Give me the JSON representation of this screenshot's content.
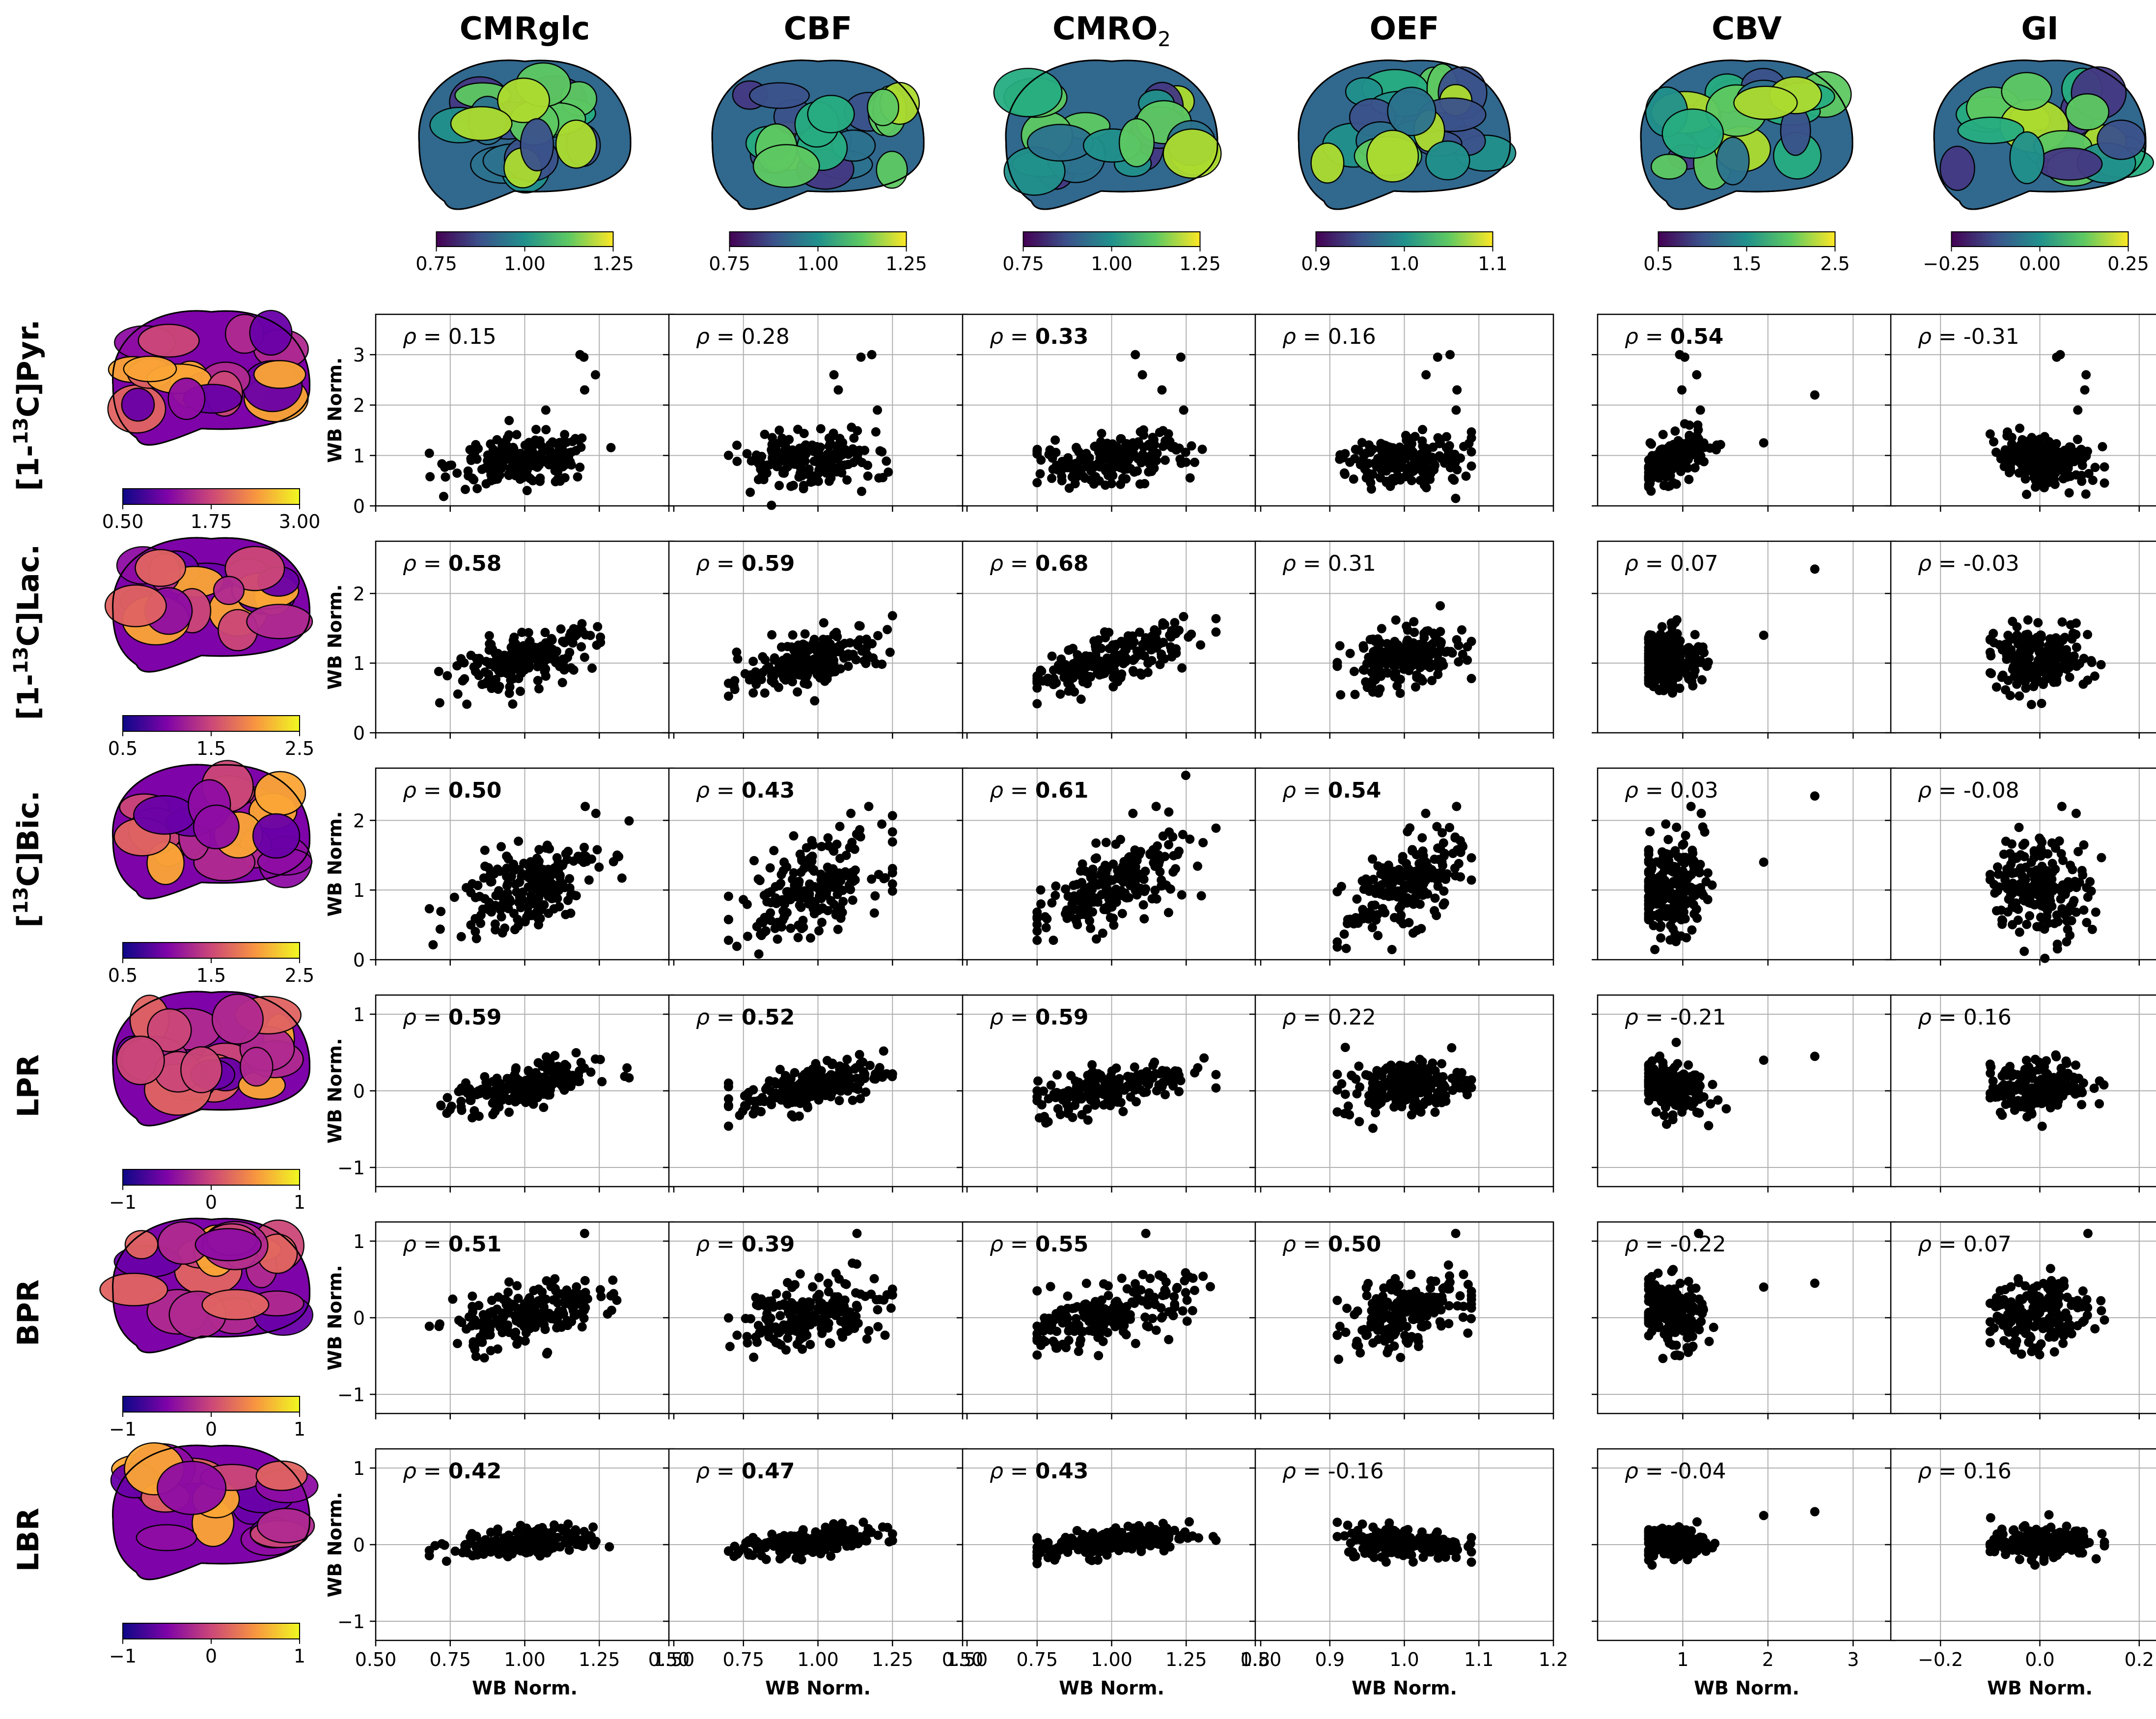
{
  "figure": {
    "x_axis_label": "WB Norm.",
    "y_axis_label": "WB Norm."
  },
  "columns": [
    {
      "key": "cmrglc",
      "label": "CMRglc",
      "sub": "",
      "cmap": "viridis",
      "colorbar": {
        "ticks": [
          "0.75",
          "1.00",
          "1.25"
        ]
      },
      "xlim": [
        0.5,
        1.5
      ],
      "xticks": [
        "0.50",
        "0.75",
        "1.00",
        "1.25",
        "1.50"
      ],
      "xtick_values": [
        0.5,
        0.75,
        1.0,
        1.25,
        1.5
      ]
    },
    {
      "key": "cbf",
      "label": "CBF",
      "sub": "",
      "cmap": "viridis",
      "colorbar": {
        "ticks": [
          "0.75",
          "1.00",
          "1.25"
        ]
      },
      "xlim": [
        0.5,
        1.5
      ],
      "xticks": [
        "0.50",
        "0.75",
        "1.00",
        "1.25",
        "1.50"
      ],
      "xtick_values": [
        0.5,
        0.75,
        1.0,
        1.25,
        1.5
      ]
    },
    {
      "key": "cmro2",
      "label": "CMRO",
      "sub": "2",
      "cmap": "viridis",
      "colorbar": {
        "ticks": [
          "0.75",
          "1.00",
          "1.25"
        ]
      },
      "xlim": [
        0.5,
        1.5
      ],
      "xticks": [
        "0.50",
        "0.75",
        "1.00",
        "1.25",
        "1.50"
      ],
      "xtick_values": [
        0.5,
        0.75,
        1.0,
        1.25,
        1.5
      ]
    },
    {
      "key": "oef",
      "label": "OEF",
      "sub": "",
      "cmap": "viridis",
      "colorbar": {
        "ticks": [
          "0.9",
          "1.0",
          "1.1"
        ]
      },
      "xlim": [
        0.8,
        1.2
      ],
      "xticks": [
        "0.8",
        "0.9",
        "1.0",
        "1.1",
        "1.2"
      ],
      "xtick_values": [
        0.8,
        0.9,
        1.0,
        1.1,
        1.2
      ]
    },
    {
      "key": "cbv",
      "label": "CBV",
      "sub": "",
      "cmap": "viridis",
      "colorbar": {
        "ticks": [
          "0.5",
          "1.5",
          "2.5"
        ]
      },
      "xlim": [
        0,
        3.5
      ],
      "xticks": [
        "1",
        "2",
        "3"
      ],
      "xtick_values": [
        1,
        2,
        3
      ]
    },
    {
      "key": "gi",
      "label": "GI",
      "sub": "",
      "cmap": "viridis",
      "colorbar": {
        "ticks": [
          "−0.25",
          "0.00",
          "0.25"
        ]
      },
      "xlim": [
        -0.3,
        0.3
      ],
      "xticks": [
        "−0.2",
        "0.0",
        "0.2"
      ],
      "xtick_values": [
        -0.2,
        0.0,
        0.2
      ]
    }
  ],
  "rows": [
    {
      "key": "pyr",
      "label": "[1-",
      "sup": "13",
      "label2": "C]Pyr.",
      "cmap": "plasma",
      "colorbar": {
        "ticks": [
          "0.50",
          "1.75",
          "3.00"
        ]
      },
      "ylim": [
        0,
        3.8
      ],
      "yticks": [
        "0",
        "1",
        "2",
        "3"
      ],
      "ytick_values": [
        0,
        1,
        2,
        3
      ]
    },
    {
      "key": "lac",
      "label": "[1-",
      "sup": "13",
      "label2": "C]Lac.",
      "cmap": "plasma",
      "colorbar": {
        "ticks": [
          "0.5",
          "1.5",
          "2.5"
        ]
      },
      "ylim": [
        0,
        2.75
      ],
      "yticks": [
        "0",
        "1",
        "2"
      ],
      "ytick_values": [
        0,
        1,
        2
      ]
    },
    {
      "key": "bic",
      "label": "[",
      "sup": "13",
      "label2": "C]Bic.",
      "cmap": "plasma",
      "colorbar": {
        "ticks": [
          "0.5",
          "1.5",
          "2.5"
        ]
      },
      "ylim": [
        0,
        2.75
      ],
      "yticks": [
        "0",
        "1",
        "2"
      ],
      "ytick_values": [
        0,
        1,
        2
      ]
    },
    {
      "key": "lpr",
      "label": "LPR",
      "sup": "",
      "label2": "",
      "cmap": "plasma",
      "colorbar": {
        "ticks": [
          "−1",
          "0",
          "1"
        ]
      },
      "ylim": [
        -1.25,
        1.25
      ],
      "yticks": [
        "−1",
        "0",
        "1"
      ],
      "ytick_values": [
        -1,
        0,
        1
      ]
    },
    {
      "key": "bpr",
      "label": "BPR",
      "sup": "",
      "label2": "",
      "cmap": "plasma",
      "colorbar": {
        "ticks": [
          "−1",
          "0",
          "1"
        ]
      },
      "ylim": [
        -1.25,
        1.25
      ],
      "yticks": [
        "−1",
        "0",
        "1"
      ],
      "ytick_values": [
        -1,
        0,
        1
      ]
    },
    {
      "key": "lbr",
      "label": "LBR",
      "sup": "",
      "label2": "",
      "cmap": "plasma",
      "colorbar": {
        "ticks": [
          "−1",
          "0",
          "1"
        ]
      },
      "ylim": [
        -1.25,
        1.25
      ],
      "yticks": [
        "−1",
        "0",
        "1"
      ],
      "ytick_values": [
        -1,
        0,
        1
      ]
    }
  ],
  "rho_symbol": "ρ",
  "chart_data": {
    "type": "scatter",
    "description_rows": [
      "[1-13C]Pyr.",
      "[1-13C]Lac.",
      "[13C]Bic.",
      "LPR",
      "BPR",
      "LBR"
    ],
    "description_cols": [
      "CMRglc",
      "CBF",
      "CMRO2",
      "OEF",
      "CBV",
      "GI"
    ],
    "xlabel": "WB Norm.",
    "ylabel": "WB Norm.",
    "grid": true,
    "correlations": [
      [
        {
          "rho": "0.15",
          "bold": false
        },
        {
          "rho": "0.28",
          "bold": false
        },
        {
          "rho": "0.33",
          "bold": true
        },
        {
          "rho": "0.16",
          "bold": false
        },
        {
          "rho": "0.54",
          "bold": true
        },
        {
          "rho": "-0.31",
          "bold": false
        }
      ],
      [
        {
          "rho": "0.58",
          "bold": true
        },
        {
          "rho": "0.59",
          "bold": true
        },
        {
          "rho": "0.68",
          "bold": true
        },
        {
          "rho": "0.31",
          "bold": false
        },
        {
          "rho": "0.07",
          "bold": false
        },
        {
          "rho": "-0.03",
          "bold": false
        }
      ],
      [
        {
          "rho": "0.50",
          "bold": true
        },
        {
          "rho": "0.43",
          "bold": true
        },
        {
          "rho": "0.61",
          "bold": true
        },
        {
          "rho": "0.54",
          "bold": true
        },
        {
          "rho": "0.03",
          "bold": false
        },
        {
          "rho": "-0.08",
          "bold": false
        }
      ],
      [
        {
          "rho": "0.59",
          "bold": true
        },
        {
          "rho": "0.52",
          "bold": true
        },
        {
          "rho": "0.59",
          "bold": true
        },
        {
          "rho": "0.22",
          "bold": false
        },
        {
          "rho": "-0.21",
          "bold": false
        },
        {
          "rho": "0.16",
          "bold": false
        }
      ],
      [
        {
          "rho": "0.51",
          "bold": true
        },
        {
          "rho": "0.39",
          "bold": true
        },
        {
          "rho": "0.55",
          "bold": true
        },
        {
          "rho": "0.50",
          "bold": true
        },
        {
          "rho": "-0.22",
          "bold": false
        },
        {
          "rho": "0.07",
          "bold": false
        }
      ],
      [
        {
          "rho": "0.42",
          "bold": true
        },
        {
          "rho": "0.47",
          "bold": true
        },
        {
          "rho": "0.43",
          "bold": true
        },
        {
          "rho": "-0.16",
          "bold": false
        },
        {
          "rho": "-0.04",
          "bold": false
        },
        {
          "rho": "0.16",
          "bold": false
        }
      ]
    ],
    "x_distributions": [
      {
        "center": 1.0,
        "spread": 0.12,
        "min": 0.68,
        "max": 1.35
      },
      {
        "center": 0.98,
        "spread": 0.12,
        "min": 0.7,
        "max": 1.25
      },
      {
        "center": 1.0,
        "spread": 0.13,
        "min": 0.75,
        "max": 1.35
      },
      {
        "center": 1.0,
        "spread": 0.04,
        "min": 0.91,
        "max": 1.09
      },
      {
        "center": 0.85,
        "spread": 0.2,
        "min": 0.6,
        "max": 2.6
      },
      {
        "center": 0.0,
        "spread": 0.05,
        "min": -0.1,
        "max": 0.13
      }
    ],
    "y_distributions": [
      {
        "center": 0.9,
        "spread": 0.25,
        "outliers": [
          3.0,
          2.95,
          2.6,
          2.3,
          1.9
        ]
      },
      {
        "center": 1.05,
        "spread": 0.22,
        "outliers": []
      },
      {
        "center": 1.05,
        "spread": 0.35,
        "outliers": [
          2.2,
          2.1
        ]
      },
      {
        "center": 0.05,
        "spread": 0.17,
        "outliers": []
      },
      {
        "center": 0.05,
        "spread": 0.22,
        "outliers": [
          1.1
        ]
      },
      {
        "center": 0.03,
        "spread": 0.1,
        "outliers": []
      }
    ]
  }
}
